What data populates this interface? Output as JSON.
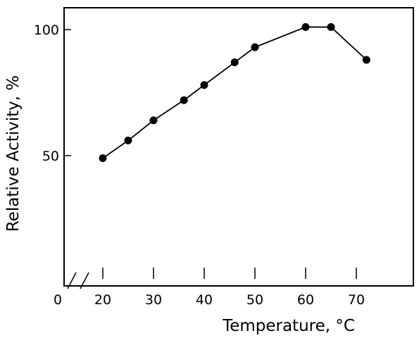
{
  "chart_data": {
    "type": "line",
    "title": "",
    "xlabel": "Temperature, °C",
    "ylabel": "Relative Activity, %",
    "x_ticks": [
      20,
      30,
      40,
      50,
      60,
      70
    ],
    "x_origin_label": "0",
    "axis_break": true,
    "y_ticks": [
      50,
      100
    ],
    "grid": false,
    "legend": "none",
    "series": [
      {
        "x": [
          20,
          25,
          30,
          36,
          40,
          46,
          50,
          60,
          65,
          72
        ],
        "y": [
          49,
          56,
          64,
          72,
          78,
          87,
          93,
          101,
          101,
          88
        ]
      }
    ]
  }
}
